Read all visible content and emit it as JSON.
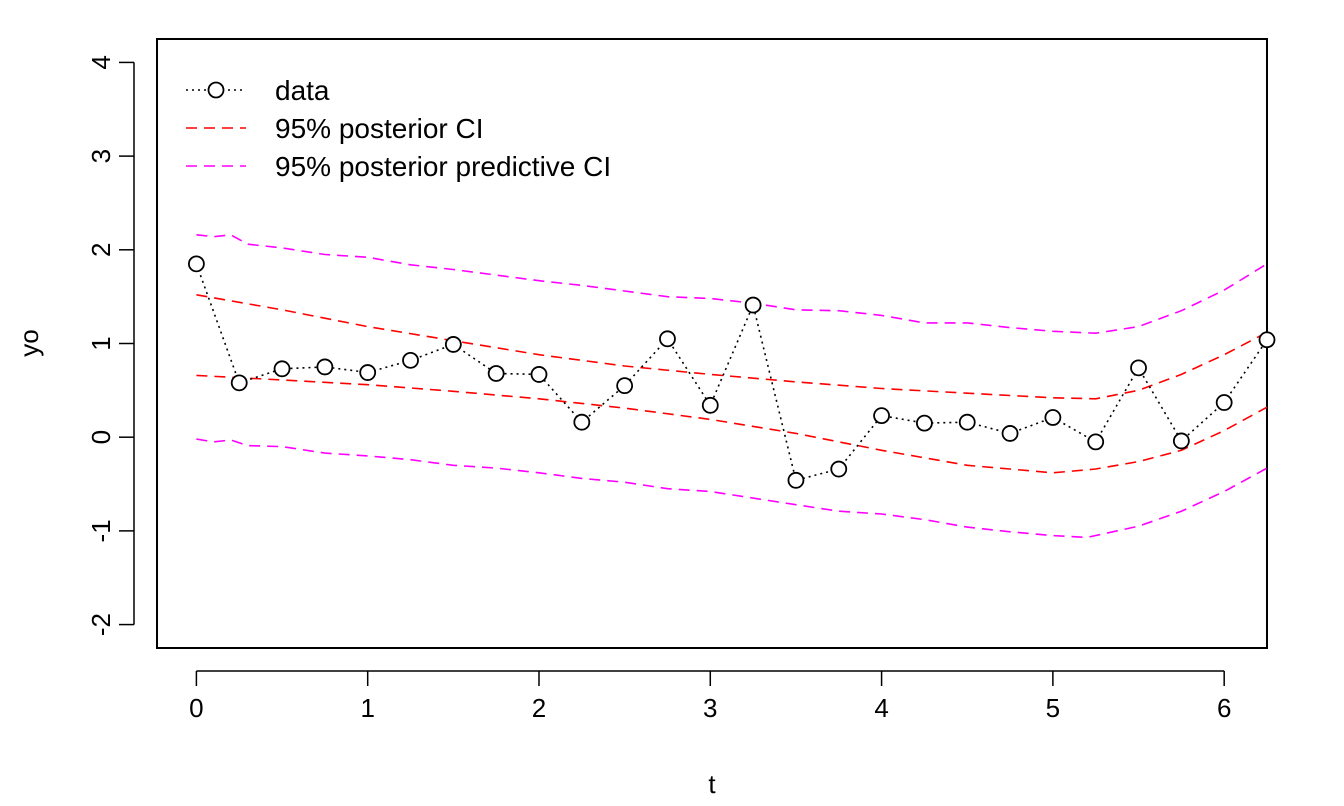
{
  "chart_data": {
    "type": "line",
    "title": "",
    "xlabel": "t",
    "ylabel": "yo",
    "xlim": [
      -0.23,
      6.25
    ],
    "ylim": [
      -2.25,
      4.25
    ],
    "x_ticks": [
      0,
      1,
      2,
      3,
      4,
      5,
      6
    ],
    "y_ticks": [
      -2,
      -1,
      0,
      1,
      2,
      3,
      4
    ],
    "x_tick_labels": [
      "0",
      "1",
      "2",
      "3",
      "4",
      "5",
      "6"
    ],
    "y_tick_labels": [
      "-2",
      "-1",
      "0",
      "1",
      "2",
      "3",
      "4"
    ],
    "grid": false,
    "legend_position": "top-left",
    "series": [
      {
        "name": "data",
        "style": "dotted with open circles",
        "color": "#000000",
        "x": [
          0,
          0.25,
          0.5,
          0.75,
          1.0,
          1.25,
          1.5,
          1.75,
          2.0,
          2.25,
          2.5,
          2.75,
          3.0,
          3.25,
          3.5,
          3.75,
          4.0,
          4.25,
          4.5,
          4.75,
          5.0,
          5.25,
          5.5,
          5.75,
          6.0,
          6.25
        ],
        "y": [
          1.85,
          0.58,
          0.73,
          0.75,
          0.69,
          0.82,
          0.99,
          0.68,
          0.67,
          0.16,
          0.55,
          1.05,
          0.34,
          1.41,
          -0.46,
          -0.34,
          0.23,
          0.15,
          0.16,
          0.04,
          0.21,
          -0.05,
          0.74,
          -0.04,
          0.37,
          1.04
        ]
      },
      {
        "name": "95% posterior CI",
        "style": "dashed",
        "color": "#ff0000",
        "upper": {
          "x": [
            0,
            0.5,
            1.0,
            1.5,
            2.0,
            2.5,
            3.0,
            3.5,
            4.0,
            4.5,
            5.0,
            5.25,
            5.5,
            5.75,
            6.0,
            6.25
          ],
          "y": [
            1.52,
            1.36,
            1.18,
            1.03,
            0.88,
            0.76,
            0.67,
            0.59,
            0.52,
            0.47,
            0.42,
            0.41,
            0.5,
            0.67,
            0.88,
            1.12
          ]
        },
        "lower": {
          "x": [
            0,
            0.5,
            1.0,
            1.5,
            2.0,
            2.5,
            3.0,
            3.5,
            4.0,
            4.5,
            5.0,
            5.25,
            5.5,
            5.75,
            6.0,
            6.25
          ],
          "y": [
            0.66,
            0.61,
            0.56,
            0.49,
            0.41,
            0.31,
            0.19,
            0.04,
            -0.14,
            -0.3,
            -0.38,
            -0.34,
            -0.26,
            -0.14,
            0.07,
            0.32
          ]
        }
      },
      {
        "name": "95% posterior predictive CI",
        "style": "dashed",
        "color": "#ff00ff",
        "upper": {
          "x": [
            0,
            0.1,
            0.2,
            0.3,
            0.5,
            0.75,
            1.0,
            1.25,
            1.5,
            1.75,
            2.0,
            2.25,
            2.5,
            2.75,
            3.0,
            3.25,
            3.5,
            3.75,
            4.0,
            4.25,
            4.5,
            4.75,
            5.0,
            5.25,
            5.5,
            5.75,
            6.0,
            6.25
          ],
          "y": [
            2.16,
            2.14,
            2.16,
            2.06,
            2.02,
            1.95,
            1.92,
            1.84,
            1.79,
            1.73,
            1.67,
            1.62,
            1.56,
            1.5,
            1.48,
            1.43,
            1.36,
            1.35,
            1.3,
            1.22,
            1.22,
            1.17,
            1.13,
            1.11,
            1.18,
            1.35,
            1.57,
            1.85
          ]
        },
        "lower": {
          "x": [
            0,
            0.1,
            0.2,
            0.3,
            0.5,
            0.75,
            1.0,
            1.25,
            1.5,
            1.75,
            2.0,
            2.25,
            2.5,
            2.75,
            3.0,
            3.25,
            3.5,
            3.75,
            4.0,
            4.25,
            4.5,
            4.75,
            5.0,
            5.2,
            5.5,
            5.75,
            6.0,
            6.25
          ],
          "y": [
            -0.02,
            -0.05,
            -0.03,
            -0.09,
            -0.1,
            -0.17,
            -0.2,
            -0.24,
            -0.3,
            -0.33,
            -0.38,
            -0.44,
            -0.48,
            -0.55,
            -0.58,
            -0.65,
            -0.72,
            -0.79,
            -0.82,
            -0.88,
            -0.96,
            -1.01,
            -1.05,
            -1.07,
            -0.95,
            -0.79,
            -0.58,
            -0.33
          ]
        }
      }
    ]
  }
}
